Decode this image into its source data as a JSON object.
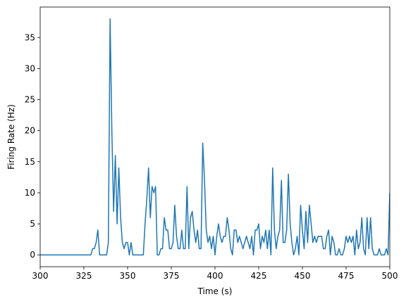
{
  "chart_data": {
    "type": "line",
    "x_label": "Time (s)",
    "y_label": "Firing Rate (Hz)",
    "x": [
      300,
      301,
      302,
      303,
      304,
      305,
      306,
      307,
      308,
      309,
      310,
      311,
      312,
      313,
      314,
      315,
      316,
      317,
      318,
      319,
      320,
      321,
      322,
      323,
      324,
      325,
      326,
      327,
      328,
      329,
      330,
      331,
      332,
      333,
      334,
      335,
      336,
      337,
      338,
      339,
      340,
      341,
      342,
      343,
      344,
      345,
      346,
      347,
      348,
      349,
      350,
      351,
      352,
      353,
      354,
      355,
      356,
      357,
      358,
      359,
      360,
      361,
      362,
      363,
      364,
      365,
      366,
      367,
      368,
      369,
      370,
      371,
      372,
      373,
      374,
      375,
      376,
      377,
      378,
      379,
      380,
      381,
      382,
      383,
      384,
      385,
      386,
      387,
      388,
      389,
      390,
      391,
      392,
      393,
      394,
      395,
      396,
      397,
      398,
      399,
      400,
      401,
      402,
      403,
      404,
      405,
      406,
      407,
      408,
      409,
      410,
      411,
      412,
      413,
      414,
      415,
      416,
      417,
      418,
      419,
      420,
      421,
      422,
      423,
      424,
      425,
      426,
      427,
      428,
      429,
      430,
      431,
      432,
      433,
      434,
      435,
      436,
      437,
      438,
      439,
      440,
      441,
      442,
      443,
      444,
      445,
      446,
      447,
      448,
      449,
      450,
      451,
      452,
      453,
      454,
      455,
      456,
      457,
      458,
      459,
      460,
      461,
      462,
      463,
      464,
      465,
      466,
      467,
      468,
      469,
      470,
      471,
      472,
      473,
      474,
      475,
      476,
      477,
      478,
      479,
      480,
      481,
      482,
      483,
      484,
      485,
      486,
      487,
      488,
      489,
      490,
      491,
      492,
      493,
      494,
      495,
      496,
      497,
      498,
      499,
      500
    ],
    "series": [
      {
        "color": "#1f77b4",
        "values": [
          0,
          0,
          0,
          0,
          0,
          0,
          0,
          0,
          0,
          0,
          0,
          0,
          0,
          0,
          0,
          0,
          0,
          0,
          0,
          0,
          0,
          0,
          0,
          0,
          0,
          0,
          0,
          0,
          0,
          0,
          1,
          1,
          2,
          4,
          0,
          0,
          0,
          0,
          0,
          2,
          38,
          20,
          7,
          16,
          5,
          14,
          6,
          2,
          1,
          2,
          2,
          0,
          2,
          0,
          0,
          0,
          0,
          0,
          0,
          0,
          5,
          9,
          14,
          6,
          11,
          10,
          11,
          0,
          0,
          1,
          1,
          6,
          4,
          4,
          1,
          1,
          2,
          8,
          3,
          1,
          1,
          4,
          1,
          1,
          11,
          1,
          6,
          7,
          4,
          2,
          4,
          1,
          1,
          18,
          12,
          4,
          2,
          3,
          1,
          3,
          0,
          3,
          5,
          3,
          2,
          3,
          3,
          6,
          4,
          1,
          0,
          4,
          4,
          2,
          3,
          2,
          1,
          2,
          3,
          2,
          1,
          3,
          0,
          4,
          4,
          5,
          1,
          3,
          2,
          4,
          1,
          4,
          0,
          14,
          4,
          1,
          3,
          4,
          12,
          2,
          2,
          4,
          13,
          5,
          2,
          0,
          1,
          3,
          0,
          8,
          4,
          1,
          7,
          2,
          8,
          5,
          2,
          3,
          2,
          3,
          3,
          3,
          1,
          1,
          3,
          4,
          0,
          3,
          2,
          0,
          0,
          1,
          0,
          0,
          1,
          3,
          2,
          3,
          2,
          3,
          0,
          4,
          1,
          2,
          6,
          1,
          0,
          6,
          1,
          6,
          1,
          0,
          0,
          0,
          1,
          0,
          0,
          0,
          1,
          0,
          10
        ]
      }
    ],
    "xlim": [
      300,
      500
    ],
    "ylim": [
      -1.9,
      39.9
    ],
    "xticks": [
      300,
      325,
      350,
      375,
      400,
      425,
      450,
      475,
      500
    ],
    "yticks": [
      0,
      5,
      10,
      15,
      20,
      25,
      30,
      35
    ]
  }
}
